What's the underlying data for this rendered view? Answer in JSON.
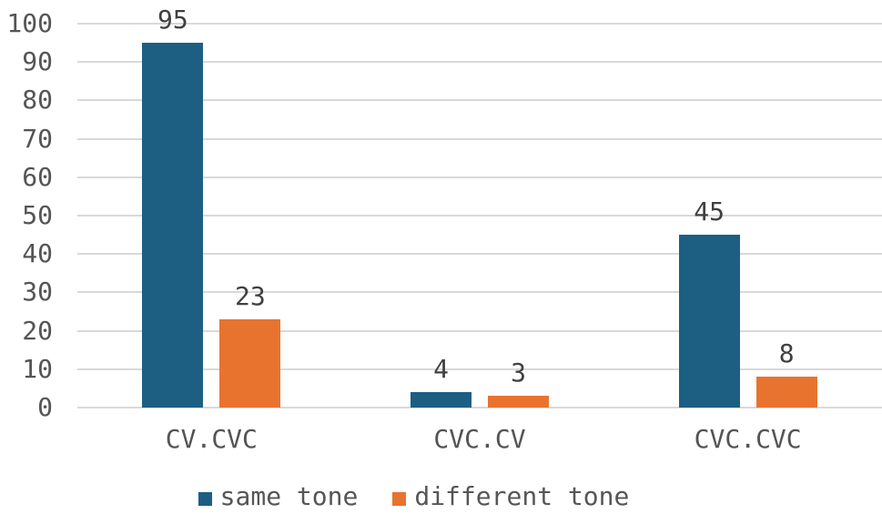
{
  "chart_data": {
    "type": "bar",
    "title": "",
    "xlabel": "",
    "ylabel": "",
    "categories": [
      "CV.CVC",
      "CVC.CV",
      "CVC.CVC"
    ],
    "series": [
      {
        "name": "same tone",
        "color": "#1C5F82",
        "values": [
          95,
          4,
          45
        ]
      },
      {
        "name": "different tone",
        "color": "#E8732F",
        "values": [
          23,
          3,
          8
        ]
      }
    ],
    "data_labels": [
      [
        95,
        4,
        45
      ],
      [
        23,
        3,
        8
      ]
    ],
    "ylim": [
      0,
      100
    ],
    "ytick_step": 10,
    "yticks": [
      0,
      10,
      20,
      30,
      40,
      50,
      60,
      70,
      80,
      90,
      100
    ],
    "grid": true,
    "legend_position": "bottom"
  },
  "colors": {
    "background": "#FFFFFF",
    "gridline": "#D9D9D9",
    "axis_text": "#545454",
    "value_label_text": "#404040",
    "legend_text": "#565656",
    "series_same_tone": "#1C5F82",
    "series_different_tone": "#E8732F"
  }
}
